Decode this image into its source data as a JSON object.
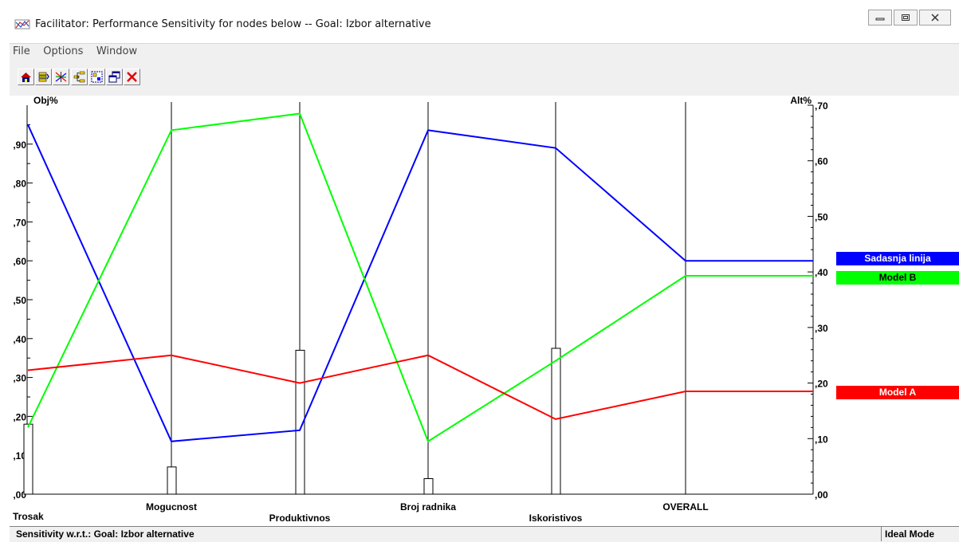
{
  "window": {
    "title": "Facilitator: Performance Sensitivity for nodes below -- Goal: Izbor alternative",
    "icon": "facilitator-app-icon",
    "controls": [
      "minimize-icon",
      "maximize-icon",
      "close-icon"
    ]
  },
  "menu": {
    "items": [
      "File",
      "Options",
      "Window"
    ]
  },
  "toolbar": {
    "buttons": [
      {
        "name": "home-icon"
      },
      {
        "name": "layers-icon"
      },
      {
        "name": "sensitivity-lines-icon"
      },
      {
        "name": "hierarchy-icon"
      },
      {
        "name": "grid-select-icon"
      },
      {
        "name": "cascade-windows-icon"
      },
      {
        "name": "close-x-icon",
        "color": "#e00000"
      }
    ]
  },
  "status": {
    "left": "Sensitivity w.r.t.: Goal: Izbor alternative",
    "right": "Ideal Mode"
  },
  "chart_data": {
    "type": "line",
    "left_axis_label": "Obj%",
    "right_axis_label": "Alt%",
    "left_ticks": [
      ",00",
      ",10",
      ",20",
      ",30",
      ",40",
      ",50",
      ",60",
      ",70",
      ",80",
      ",90"
    ],
    "right_ticks": [
      ",00",
      ",10",
      ",20",
      ",30",
      ",40",
      ",50",
      ",60",
      ",70"
    ],
    "left_range": [
      0,
      1.0
    ],
    "right_range": [
      0,
      0.7
    ],
    "criteria": [
      "Trosak",
      "Mogucnost",
      "Produktivnos",
      "Broj radnika",
      "Iskoristivos",
      "OVERALL"
    ],
    "criteria_weights": [
      0.18,
      0.07,
      0.37,
      0.04,
      0.375,
      null
    ],
    "series": [
      {
        "name": "Sadasnja linija",
        "color": "#0000ff",
        "values": [
          0.665,
          0.095,
          0.115,
          0.655,
          0.623,
          0.42,
          0.42
        ]
      },
      {
        "name": "Model B",
        "color": "#00ff00",
        "values": [
          0.12,
          0.655,
          0.685,
          0.095,
          0.24,
          0.393,
          0.393
        ]
      },
      {
        "name": "Model A",
        "color": "#ff0000",
        "values": [
          0.223,
          0.25,
          0.2,
          0.25,
          0.135,
          0.185,
          0.185
        ]
      }
    ]
  }
}
